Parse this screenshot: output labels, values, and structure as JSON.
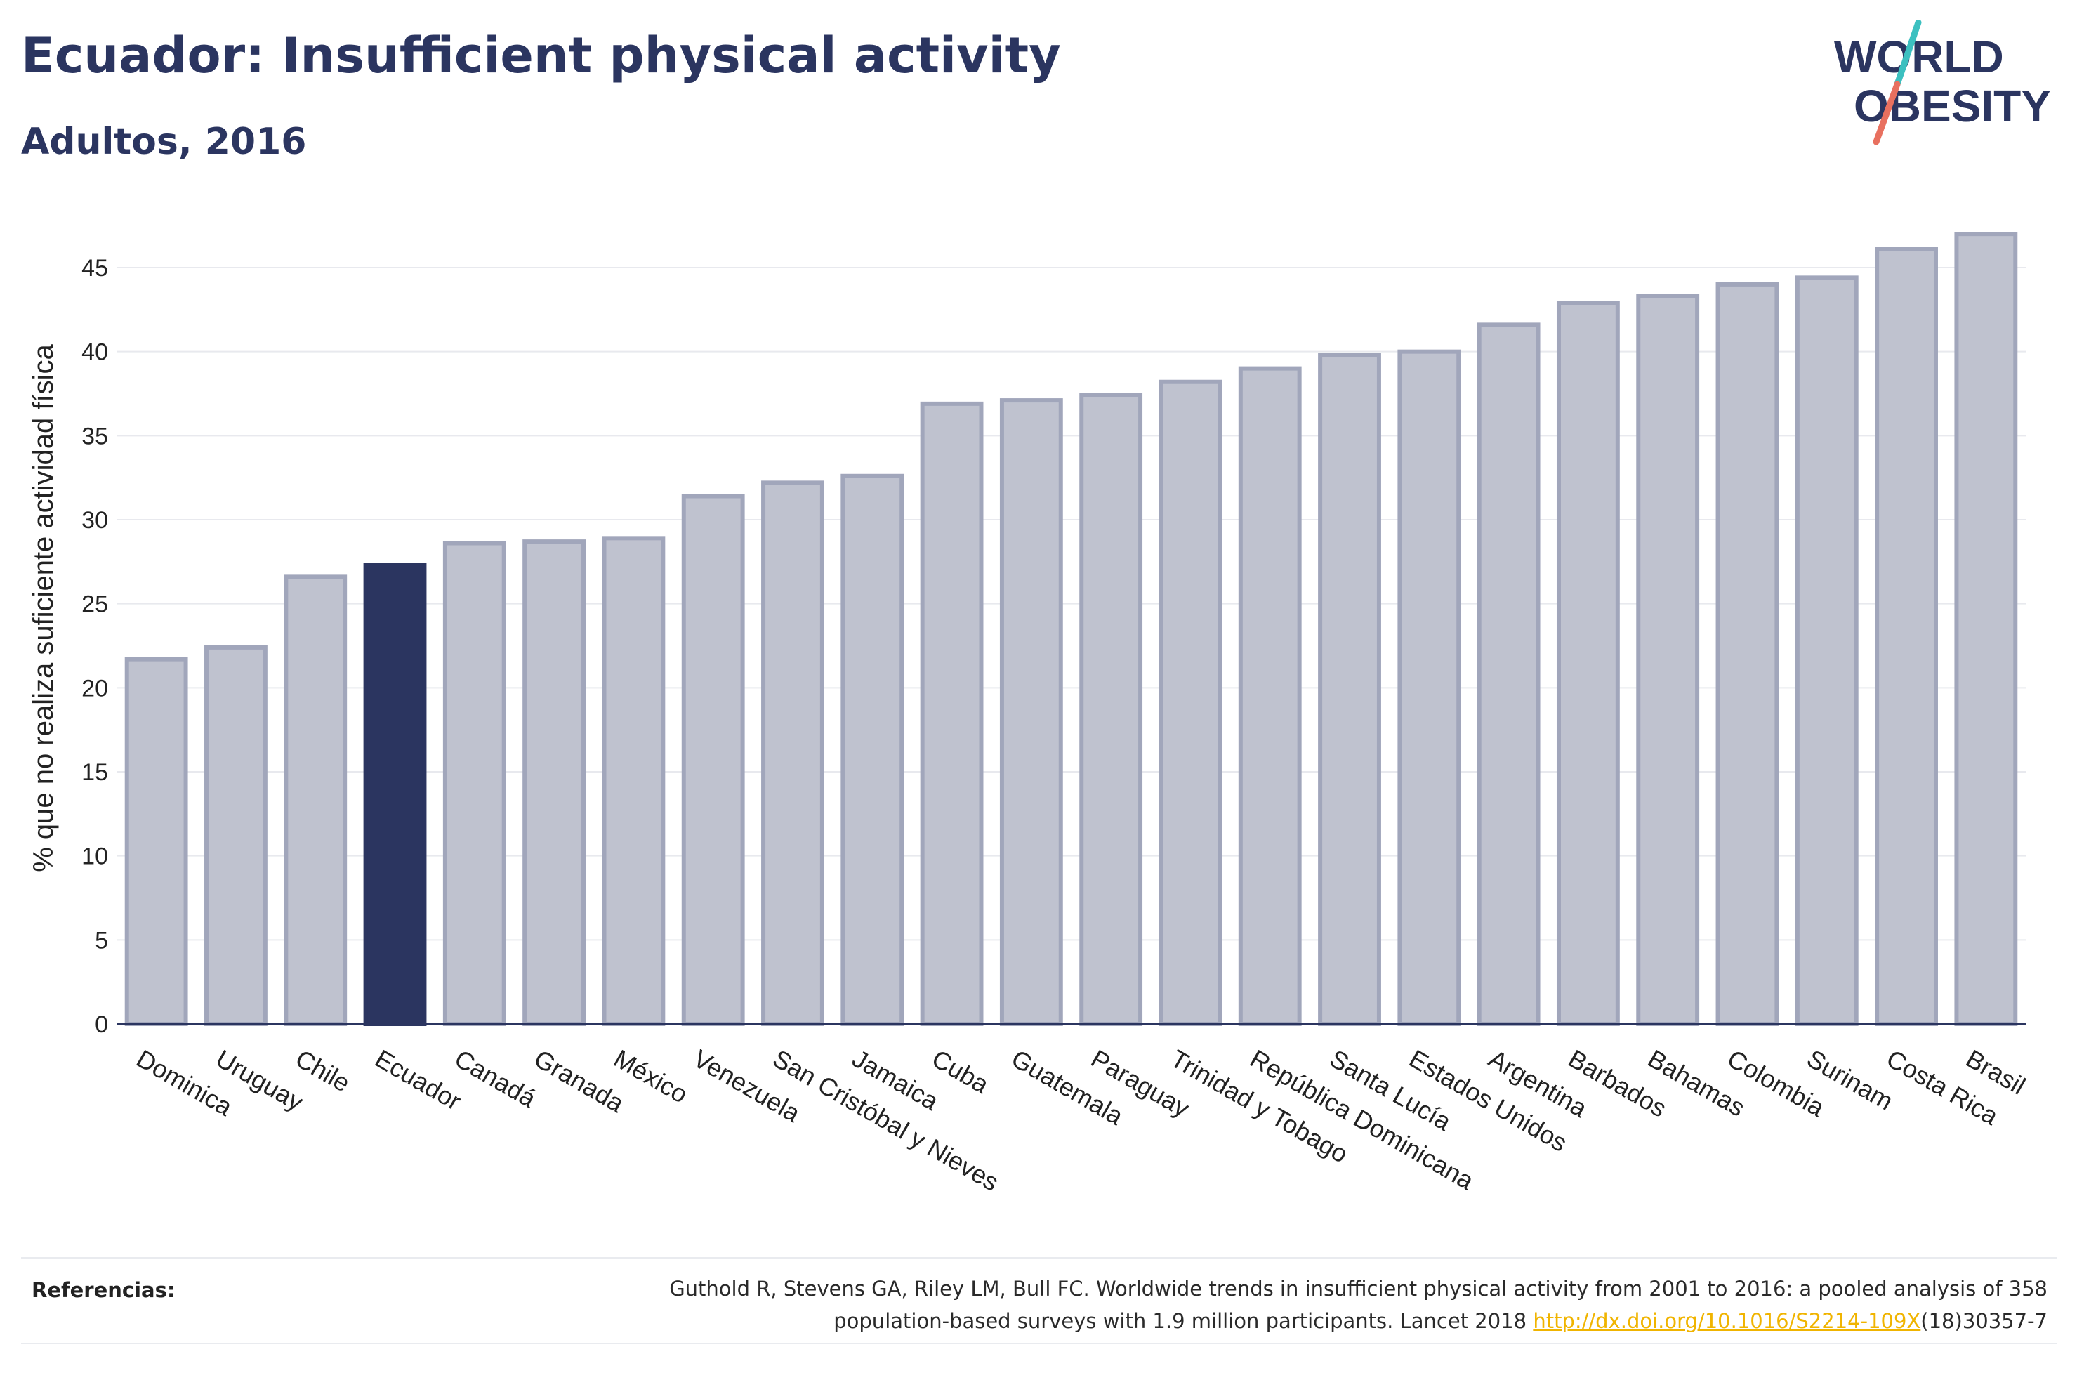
{
  "header": {
    "title": "Ecuador: Insufficient physical activity",
    "subtitle": "Adultos, 2016"
  },
  "logo": {
    "line1": "WORLD",
    "line2": "OBESITY"
  },
  "chart_data": {
    "type": "bar",
    "ylabel": "% que no realiza suficiente actividad física",
    "xlabel": "",
    "ylim": [
      0,
      47
    ],
    "yticks": [
      0,
      5,
      10,
      15,
      20,
      25,
      30,
      35,
      40,
      45
    ],
    "grid": true,
    "highlight": "Ecuador",
    "categories": [
      "Dominica",
      "Uruguay",
      "Chile",
      "Ecuador",
      "Canadá",
      "Granada",
      "México",
      "Venezuela",
      "San Cristóbal y Nieves",
      "Jamaica",
      "Cuba",
      "Guatemala",
      "Paraguay",
      "Trinidad y Tobago",
      "República Dominicana",
      "Santa Lucía",
      "Estados Unidos",
      "Argentina",
      "Barbados",
      "Bahamas",
      "Colombia",
      "Surinam",
      "Costa Rica",
      "Brasil"
    ],
    "values": [
      21.7,
      22.4,
      26.6,
      27.3,
      28.6,
      28.7,
      28.9,
      31.4,
      32.2,
      32.6,
      36.9,
      37.1,
      37.4,
      38.2,
      39.0,
      39.8,
      40.0,
      41.6,
      42.9,
      43.3,
      44.0,
      44.4,
      46.1,
      47.0
    ],
    "colors": {
      "bar_fill": "#bfc2cf",
      "bar_stroke": "#a1a6bb",
      "highlight": "#2b3560",
      "axis": "#2b3560",
      "grid": "#e8e9ee"
    }
  },
  "references": {
    "label": "Referencias:",
    "line1": "Guthold R, Stevens GA, Riley LM, Bull FC. Worldwide trends in insufficient physical activity from 2001 to 2016: a pooled analysis of 358",
    "line2_prefix": "population-based surveys with 1.9 million participants. Lancet 2018 ",
    "link": "http://dx.doi.org/10.1016/S2214-109X",
    "line2_suffix": "(18)30357-7",
    "link_color": "#f0b400"
  }
}
